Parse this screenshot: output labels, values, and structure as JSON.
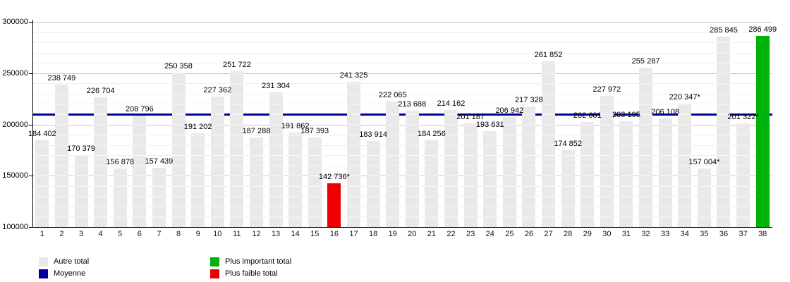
{
  "chart_data": {
    "type": "bar",
    "title": "",
    "xlabel": "",
    "ylabel": "",
    "categories": [
      "1",
      "2",
      "3",
      "4",
      "5",
      "6",
      "7",
      "8",
      "9",
      "10",
      "11",
      "12",
      "13",
      "14",
      "15",
      "16",
      "17",
      "18",
      "19",
      "20",
      "21",
      "22",
      "23",
      "24",
      "25",
      "26",
      "27",
      "28",
      "29",
      "30",
      "31",
      "32",
      "33",
      "34",
      "35",
      "36",
      "37",
      "38"
    ],
    "values": [
      184402,
      238749,
      170379,
      226704,
      156878,
      208796,
      157439,
      250358,
      191202,
      227362,
      251722,
      187288,
      231304,
      191862,
      187393,
      142736,
      241325,
      183914,
      222065,
      213688,
      184256,
      214162,
      201187,
      193631,
      206942,
      217328,
      261852,
      174852,
      202601,
      227972,
      203195,
      255287,
      206108,
      220347,
      157004,
      285845,
      201322,
      286499
    ],
    "bar_labels": [
      "184 402",
      "238 749",
      "170 379",
      "226 704",
      "156 878",
      "208 796",
      "157 439",
      "250 358",
      "191 202",
      "227 362",
      "251 722",
      "187 288",
      "231 304",
      "191 862",
      "187 393",
      "142 736*",
      "241 325",
      "183 914",
      "222 065",
      "213 688",
      "184 256",
      "214 162",
      "201 187",
      "193 631",
      "206 942",
      "217 328",
      "261 852",
      "174 852",
      "202 601",
      "227 972",
      "203 195",
      "255 287",
      "206 108",
      "220 347*",
      "157 004*",
      "285 845",
      "201 322*",
      "286 499"
    ],
    "ylim": [
      100000,
      300000
    ],
    "ytick_values": [
      100000,
      150000,
      200000,
      250000,
      300000
    ],
    "ytick_labels": [
      "100000",
      "150000",
      "200000",
      "250000",
      "300000"
    ],
    "minor_grid_step": 10000,
    "grid": "on",
    "legend_position": "bottom",
    "lowest_index": 16,
    "highest_index": 38,
    "average_value": 209630,
    "colors": {
      "other_total": "#e9e9e9",
      "average_line": "#000099",
      "highest_total": "#00b10c",
      "lowest_total": "#ee0000"
    },
    "legend": {
      "items": [
        {
          "label": "Autre total",
          "color_key": "other_total"
        },
        {
          "label": "Moyenne",
          "color_key": "average_line"
        },
        {
          "label": "Plus important total",
          "color_key": "highest_total"
        },
        {
          "label": "Plus faible total",
          "color_key": "lowest_total"
        }
      ]
    }
  }
}
